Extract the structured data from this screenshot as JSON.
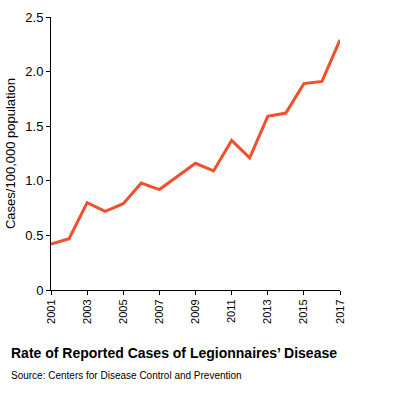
{
  "chart_data": {
    "type": "line",
    "title": "Rate of Reported Cases of Legionnaires’ Disease",
    "subtitle": "Source: Centers for Disease Control and Prevention",
    "y_label": "Cases/100,000 population",
    "x": [
      2001,
      2002,
      2003,
      2004,
      2005,
      2006,
      2007,
      2008,
      2009,
      2010,
      2011,
      2012,
      2013,
      2014,
      2015,
      2016,
      2017
    ],
    "values": [
      0.42,
      0.47,
      0.8,
      0.72,
      0.79,
      0.98,
      0.92,
      1.04,
      1.16,
      1.09,
      1.37,
      1.21,
      1.59,
      1.62,
      1.89,
      1.91,
      2.29
    ],
    "color": "#f0502a",
    "xlim": [
      2001,
      2017
    ],
    "xticks": [
      2001,
      2003,
      2005,
      2007,
      2009,
      2011,
      2013,
      2015,
      2017
    ],
    "ylim": [
      0,
      2.5
    ],
    "yticks": [
      0,
      0.5,
      {
        "value": 1,
        "label": "1.0"
      },
      1.5,
      {
        "value": 2,
        "label": "2.0"
      },
      2.5
    ],
    "grid": false
  }
}
